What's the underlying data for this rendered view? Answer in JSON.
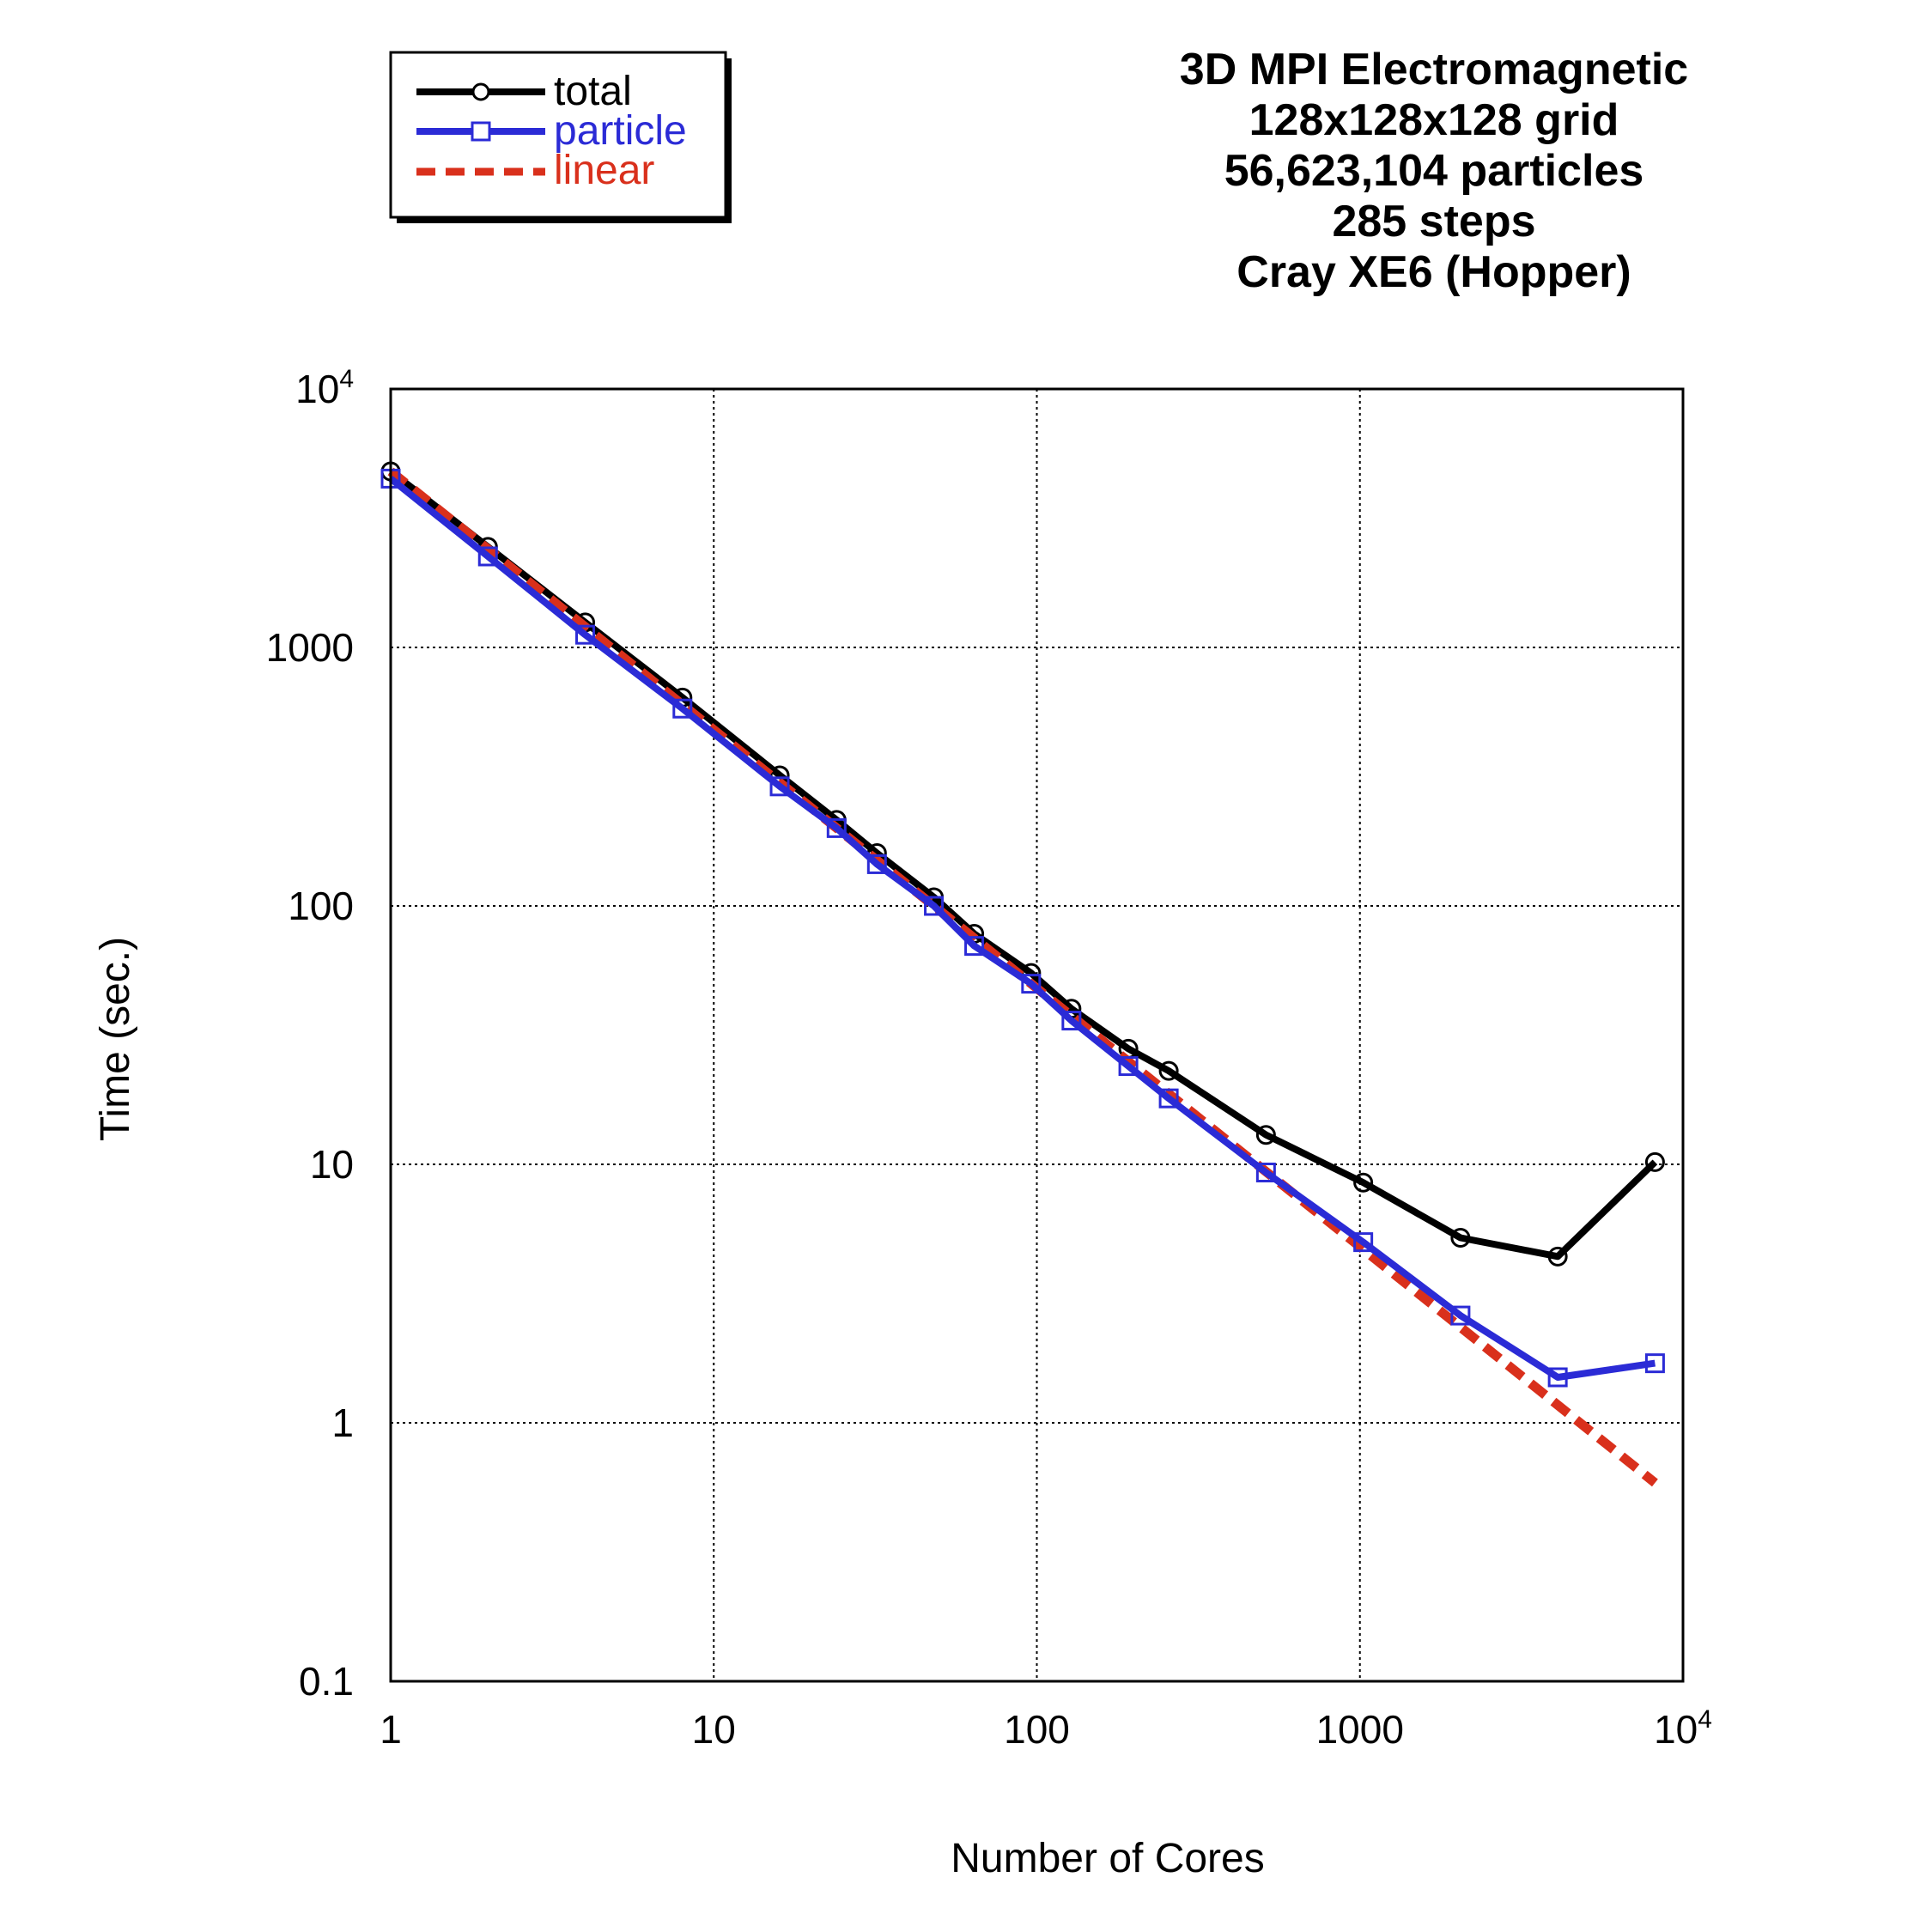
{
  "chart_data": {
    "type": "line",
    "title_lines": [
      "3D MPI Electromagnetic",
      "128x128x128 grid",
      "56,623,104 particles",
      "285 steps",
      "Cray XE6 (Hopper)"
    ],
    "xlabel": "Number of Cores",
    "ylabel": "Time (sec.)",
    "xscale": "log",
    "yscale": "log",
    "xlim": [
      1,
      10000
    ],
    "ylim": [
      0.1,
      10000
    ],
    "x_ticks": [
      {
        "value": 1,
        "label": "1"
      },
      {
        "value": 10,
        "label": "10"
      },
      {
        "value": 100,
        "label": "100"
      },
      {
        "value": 1000,
        "label": "1000"
      },
      {
        "value": 10000,
        "label": "10",
        "exp": "4"
      }
    ],
    "y_ticks": [
      {
        "value": 0.1,
        "label": "0.1"
      },
      {
        "value": 1,
        "label": "1"
      },
      {
        "value": 10,
        "label": "10"
      },
      {
        "value": 100,
        "label": "100"
      },
      {
        "value": 1000,
        "label": "1000"
      },
      {
        "value": 10000,
        "label": "10",
        "exp": "4"
      }
    ],
    "grid": true,
    "legend_position": "top-left",
    "series": [
      {
        "name": "total",
        "color": "#000000",
        "marker": "circle",
        "dash": false,
        "x": [
          1,
          2,
          4,
          8,
          16,
          24,
          32,
          48,
          64,
          96,
          128,
          192,
          256,
          512,
          1024,
          2048,
          4096,
          8192
        ],
        "y": [
          4800,
          2450,
          1250,
          640,
          320,
          215,
          160,
          108,
          78,
          55,
          40,
          28,
          23,
          13,
          8.5,
          5.2,
          4.4,
          10.2
        ]
      },
      {
        "name": "particle",
        "color": "#2b2bd6",
        "marker": "square",
        "dash": false,
        "x": [
          1,
          2,
          4,
          8,
          16,
          24,
          32,
          48,
          64,
          96,
          128,
          192,
          256,
          512,
          1024,
          2048,
          4096,
          8192
        ],
        "y": [
          4500,
          2250,
          1120,
          580,
          290,
          200,
          145,
          100,
          70,
          50,
          36,
          24,
          18,
          9.3,
          5.0,
          2.6,
          1.5,
          1.7
        ]
      },
      {
        "name": "linear",
        "color": "#d9301c",
        "marker": "none",
        "dash": true,
        "x": [
          1,
          8192
        ],
        "y": [
          4800,
          0.586
        ]
      }
    ]
  }
}
